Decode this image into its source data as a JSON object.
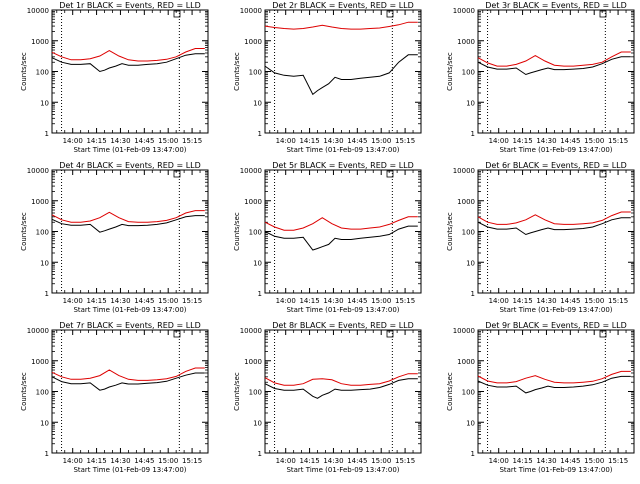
{
  "figure": {
    "colors": {
      "events": "#000000",
      "lld": "#dd0000",
      "axes": "#000000",
      "background": "#ffffff"
    }
  },
  "chart_data": [
    {
      "type": "line",
      "title": "Det 1r BLACK = Events, RED = LLD",
      "xlabel": "Start Time (01-Feb-09 13:47:00)",
      "ylabel": "Counts/sec",
      "yscale": "log",
      "ylim": [
        1,
        10000
      ],
      "xlim_minutes_from_start": [
        0,
        98
      ],
      "x_ticks": [
        "14:00",
        "14:15",
        "14:30",
        "14:45",
        "15:00",
        "15:15"
      ],
      "y_ticks": [
        "1",
        "10",
        "100",
        "1000",
        "10000"
      ],
      "vlines": [
        "13:53",
        "15:07"
      ],
      "series": [
        {
          "color": "red",
          "x": [
            0,
            6,
            12,
            18,
            24,
            30,
            36,
            42,
            48,
            54,
            60,
            66,
            72,
            78,
            84,
            90,
            96
          ],
          "values": [
            420,
            300,
            240,
            240,
            260,
            320,
            480,
            320,
            240,
            220,
            220,
            230,
            250,
            300,
            430,
            560,
            560
          ]
        },
        {
          "color": "black",
          "x": [
            0,
            6,
            12,
            18,
            24,
            30,
            33,
            36,
            40,
            44,
            48,
            54,
            60,
            66,
            72,
            78,
            84,
            90,
            96
          ],
          "values": [
            280,
            200,
            170,
            170,
            180,
            100,
            110,
            130,
            150,
            180,
            160,
            160,
            170,
            180,
            200,
            260,
            340,
            380,
            380
          ]
        }
      ]
    },
    {
      "type": "line",
      "title": "Det 2r BLACK = Events, RED = LLD",
      "xlabel": "Start Time (01-Feb-09 13:47:00)",
      "ylabel": "Counts/sec",
      "yscale": "log",
      "ylim": [
        1,
        10000
      ],
      "xlim_minutes_from_start": [
        0,
        98
      ],
      "x_ticks": [
        "14:00",
        "14:15",
        "14:30",
        "14:45",
        "15:00",
        "15:15"
      ],
      "y_ticks": [
        "1",
        "10",
        "100",
        "1000",
        "10000"
      ],
      "vlines": [
        "13:53",
        "15:07"
      ],
      "series": [
        {
          "color": "red",
          "x": [
            0,
            6,
            12,
            18,
            24,
            30,
            36,
            42,
            48,
            54,
            60,
            66,
            72,
            78,
            84,
            90,
            96
          ],
          "values": [
            3000,
            2700,
            2500,
            2400,
            2500,
            2800,
            3200,
            2800,
            2500,
            2400,
            2400,
            2500,
            2600,
            2900,
            3300,
            4000,
            4000
          ]
        },
        {
          "color": "black",
          "x": [
            0,
            6,
            12,
            18,
            24,
            30,
            33,
            36,
            40,
            44,
            48,
            54,
            60,
            66,
            72,
            78,
            84,
            90,
            96
          ],
          "values": [
            150,
            90,
            75,
            70,
            75,
            18,
            24,
            30,
            40,
            65,
            55,
            55,
            60,
            65,
            70,
            90,
            200,
            350,
            350
          ]
        }
      ]
    },
    {
      "type": "line",
      "title": "Det 3r BLACK = Events, RED = LLD",
      "xlabel": "Start Time (01-Feb-09 13:47:00)",
      "ylabel": "Counts/sec",
      "yscale": "log",
      "ylim": [
        1,
        10000
      ],
      "xlim_minutes_from_start": [
        0,
        98
      ],
      "x_ticks": [
        "14:00",
        "14:15",
        "14:30",
        "14:45",
        "15:00",
        "15:15"
      ],
      "y_ticks": [
        "1",
        "10",
        "100",
        "1000",
        "10000"
      ],
      "vlines": [
        "13:53",
        "15:07"
      ],
      "series": [
        {
          "color": "red",
          "x": [
            0,
            6,
            12,
            18,
            24,
            30,
            36,
            42,
            48,
            54,
            60,
            66,
            72,
            78,
            84,
            90,
            96
          ],
          "values": [
            280,
            190,
            150,
            150,
            170,
            220,
            330,
            220,
            160,
            150,
            150,
            160,
            170,
            200,
            300,
            430,
            430
          ]
        },
        {
          "color": "black",
          "x": [
            0,
            6,
            12,
            18,
            24,
            30,
            33,
            36,
            40,
            44,
            48,
            54,
            60,
            66,
            72,
            78,
            84,
            90,
            96
          ],
          "values": [
            200,
            140,
            120,
            120,
            130,
            80,
            90,
            100,
            115,
            130,
            115,
            115,
            120,
            125,
            140,
            180,
            250,
            300,
            300
          ]
        }
      ]
    },
    {
      "type": "line",
      "title": "Det 4r BLACK = Events, RED = LLD",
      "xlabel": "Start Time (01-Feb-09 13:47:00)",
      "ylabel": "Counts/sec",
      "yscale": "log",
      "ylim": [
        1,
        10000
      ],
      "xlim_minutes_from_start": [
        0,
        98
      ],
      "x_ticks": [
        "14:00",
        "14:15",
        "14:30",
        "14:45",
        "15:00",
        "15:15"
      ],
      "y_ticks": [
        "1",
        "10",
        "100",
        "1000",
        "10000"
      ],
      "vlines": [
        "13:53",
        "15:07"
      ],
      "series": [
        {
          "color": "red",
          "x": [
            0,
            6,
            12,
            18,
            24,
            30,
            36,
            42,
            48,
            54,
            60,
            66,
            72,
            78,
            84,
            90,
            96
          ],
          "values": [
            350,
            240,
            200,
            200,
            220,
            280,
            420,
            280,
            210,
            200,
            200,
            210,
            230,
            280,
            400,
            480,
            480
          ]
        },
        {
          "color": "black",
          "x": [
            0,
            6,
            12,
            18,
            24,
            30,
            33,
            36,
            40,
            44,
            48,
            54,
            60,
            66,
            72,
            78,
            84,
            90,
            96
          ],
          "values": [
            250,
            180,
            160,
            160,
            170,
            95,
            105,
            120,
            140,
            170,
            155,
            155,
            160,
            170,
            190,
            240,
            300,
            330,
            330
          ]
        }
      ]
    },
    {
      "type": "line",
      "title": "Det 5r BLACK = Events, RED = LLD",
      "xlabel": "Start Time (01-Feb-09 13:47:00)",
      "ylabel": "Counts/sec",
      "yscale": "log",
      "ylim": [
        1,
        10000
      ],
      "xlim_minutes_from_start": [
        0,
        98
      ],
      "x_ticks": [
        "14:00",
        "14:15",
        "14:30",
        "14:45",
        "15:00",
        "15:15"
      ],
      "y_ticks": [
        "1",
        "10",
        "100",
        "1000",
        "10000"
      ],
      "vlines": [
        "13:53",
        "15:07"
      ],
      "series": [
        {
          "color": "red",
          "x": [
            0,
            6,
            12,
            18,
            24,
            30,
            36,
            42,
            48,
            54,
            60,
            66,
            72,
            78,
            84,
            90,
            96
          ],
          "values": [
            200,
            140,
            110,
            110,
            130,
            180,
            280,
            180,
            130,
            120,
            120,
            130,
            140,
            170,
            230,
            300,
            300
          ]
        },
        {
          "color": "black",
          "x": [
            0,
            6,
            12,
            18,
            24,
            30,
            33,
            36,
            40,
            44,
            48,
            54,
            60,
            66,
            72,
            78,
            84,
            90,
            96
          ],
          "values": [
            100,
            70,
            60,
            60,
            65,
            25,
            28,
            32,
            38,
            60,
            55,
            55,
            60,
            65,
            70,
            80,
            120,
            150,
            150
          ]
        }
      ]
    },
    {
      "type": "line",
      "title": "Det 6r BLACK = Events, RED = LLD",
      "xlabel": "Start Time (01-Feb-09 13:47:00)",
      "ylabel": "Counts/sec",
      "yscale": "log",
      "ylim": [
        1,
        10000
      ],
      "xlim_minutes_from_start": [
        0,
        98
      ],
      "x_ticks": [
        "14:00",
        "14:15",
        "14:30",
        "14:45",
        "15:00",
        "15:15"
      ],
      "y_ticks": [
        "1",
        "10",
        "100",
        "1000",
        "10000"
      ],
      "vlines": [
        "13:53",
        "15:07"
      ],
      "series": [
        {
          "color": "red",
          "x": [
            0,
            6,
            12,
            18,
            24,
            30,
            36,
            42,
            48,
            54,
            60,
            66,
            72,
            78,
            84,
            90,
            96
          ],
          "values": [
            300,
            200,
            170,
            170,
            190,
            240,
            350,
            240,
            180,
            170,
            170,
            180,
            190,
            230,
            330,
            430,
            430
          ]
        },
        {
          "color": "black",
          "x": [
            0,
            6,
            12,
            18,
            24,
            30,
            33,
            36,
            40,
            44,
            48,
            54,
            60,
            66,
            72,
            78,
            84,
            90,
            96
          ],
          "values": [
            200,
            140,
            120,
            120,
            130,
            80,
            90,
            100,
            115,
            130,
            115,
            115,
            120,
            125,
            140,
            180,
            240,
            280,
            280
          ]
        }
      ]
    },
    {
      "type": "line",
      "title": "Det 7r BLACK = Events, RED = LLD",
      "xlabel": "Start Time (01-Feb-09 13:47:00)",
      "ylabel": "Counts/sec",
      "yscale": "log",
      "ylim": [
        1,
        10000
      ],
      "xlim_minutes_from_start": [
        0,
        98
      ],
      "x_ticks": [
        "14:00",
        "14:15",
        "14:30",
        "14:45",
        "15:00",
        "15:15"
      ],
      "y_ticks": [
        "1",
        "10",
        "100",
        "1000",
        "10000"
      ],
      "vlines": [
        "13:53",
        "15:07"
      ],
      "series": [
        {
          "color": "red",
          "x": [
            0,
            6,
            12,
            18,
            24,
            30,
            36,
            42,
            48,
            54,
            60,
            66,
            72,
            78,
            84,
            90,
            96
          ],
          "values": [
            420,
            300,
            250,
            250,
            270,
            330,
            500,
            330,
            250,
            230,
            230,
            240,
            260,
            310,
            450,
            580,
            580
          ]
        },
        {
          "color": "black",
          "x": [
            0,
            6,
            12,
            18,
            24,
            30,
            33,
            36,
            40,
            44,
            48,
            54,
            60,
            66,
            72,
            78,
            84,
            90,
            96
          ],
          "values": [
            300,
            210,
            180,
            180,
            190,
            110,
            120,
            140,
            160,
            190,
            175,
            175,
            185,
            195,
            215,
            270,
            340,
            400,
            400
          ]
        }
      ]
    },
    {
      "type": "line",
      "title": "Det 8r BLACK = Events, RED = LLD",
      "xlabel": "Start Time (01-Feb-09 13:47:00)",
      "ylabel": "Counts/sec",
      "yscale": "log",
      "ylim": [
        1,
        10000
      ],
      "xlim_minutes_from_start": [
        0,
        98
      ],
      "x_ticks": [
        "14:00",
        "14:15",
        "14:30",
        "14:45",
        "15:00",
        "15:15"
      ],
      "y_ticks": [
        "1",
        "10",
        "100",
        "1000",
        "10000"
      ],
      "vlines": [
        "13:53",
        "15:07"
      ],
      "series": [
        {
          "color": "red",
          "x": [
            0,
            6,
            12,
            18,
            24,
            30,
            36,
            42,
            48,
            54,
            60,
            66,
            72,
            78,
            84,
            90,
            96
          ],
          "values": [
            280,
            190,
            160,
            160,
            180,
            250,
            260,
            240,
            180,
            160,
            160,
            170,
            180,
            220,
            300,
            380,
            380
          ]
        },
        {
          "color": "black",
          "x": [
            0,
            6,
            12,
            18,
            24,
            30,
            33,
            36,
            40,
            44,
            48,
            54,
            60,
            66,
            72,
            78,
            84,
            90,
            96
          ],
          "values": [
            180,
            125,
            110,
            110,
            120,
            70,
            60,
            75,
            90,
            120,
            110,
            110,
            115,
            120,
            135,
            170,
            230,
            260,
            260
          ]
        }
      ]
    },
    {
      "type": "line",
      "title": "Det 9r BLACK = Events, RED = LLD",
      "xlabel": "Start Time (01-Feb-09 13:47:00)",
      "ylabel": "Counts/sec",
      "yscale": "log",
      "ylim": [
        1,
        10000
      ],
      "xlim_minutes_from_start": [
        0,
        98
      ],
      "x_ticks": [
        "14:00",
        "14:15",
        "14:30",
        "14:45",
        "15:00",
        "15:15"
      ],
      "y_ticks": [
        "1",
        "10",
        "100",
        "1000",
        "10000"
      ],
      "vlines": [
        "13:53",
        "15:07"
      ],
      "series": [
        {
          "color": "red",
          "x": [
            0,
            6,
            12,
            18,
            24,
            30,
            36,
            42,
            48,
            54,
            60,
            66,
            72,
            78,
            84,
            90,
            96
          ],
          "values": [
            320,
            220,
            190,
            190,
            210,
            270,
            330,
            250,
            200,
            190,
            190,
            200,
            215,
            260,
            360,
            450,
            450
          ]
        },
        {
          "color": "black",
          "x": [
            0,
            6,
            12,
            18,
            24,
            30,
            33,
            36,
            40,
            44,
            48,
            54,
            60,
            66,
            72,
            78,
            84,
            90,
            96
          ],
          "values": [
            220,
            160,
            140,
            140,
            150,
            90,
            100,
            115,
            130,
            150,
            135,
            135,
            140,
            150,
            165,
            200,
            270,
            310,
            310
          ]
        }
      ]
    }
  ]
}
